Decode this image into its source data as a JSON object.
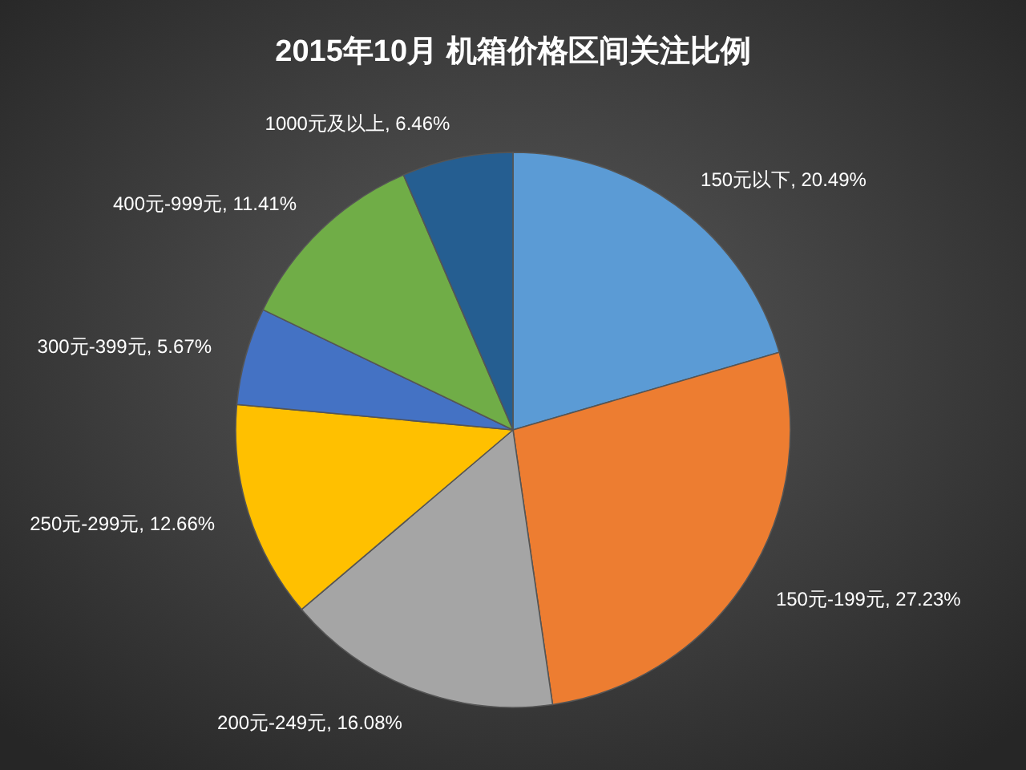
{
  "chart_data": {
    "type": "pie",
    "title": "2015年10月  机箱价格区间关注比例",
    "categories": [
      "150元以下",
      "150元-199元",
      "200元-249元",
      "250元-299元",
      "300元-399元",
      "400元-999元",
      "1000元及以上"
    ],
    "values": [
      20.49,
      27.23,
      16.08,
      12.66,
      5.67,
      11.41,
      6.46
    ],
    "value_labels": [
      ", 20.49%",
      ", 27.23%",
      ", 16.08%",
      ", 12.66%",
      ", 5.67%",
      ", 11.41%",
      ", 6.46%"
    ],
    "colors": [
      "#5b9bd5",
      "#ed7d31",
      "#a5a5a5",
      "#ffc000",
      "#4472c4",
      "#70ad47",
      "#255e91"
    ]
  }
}
